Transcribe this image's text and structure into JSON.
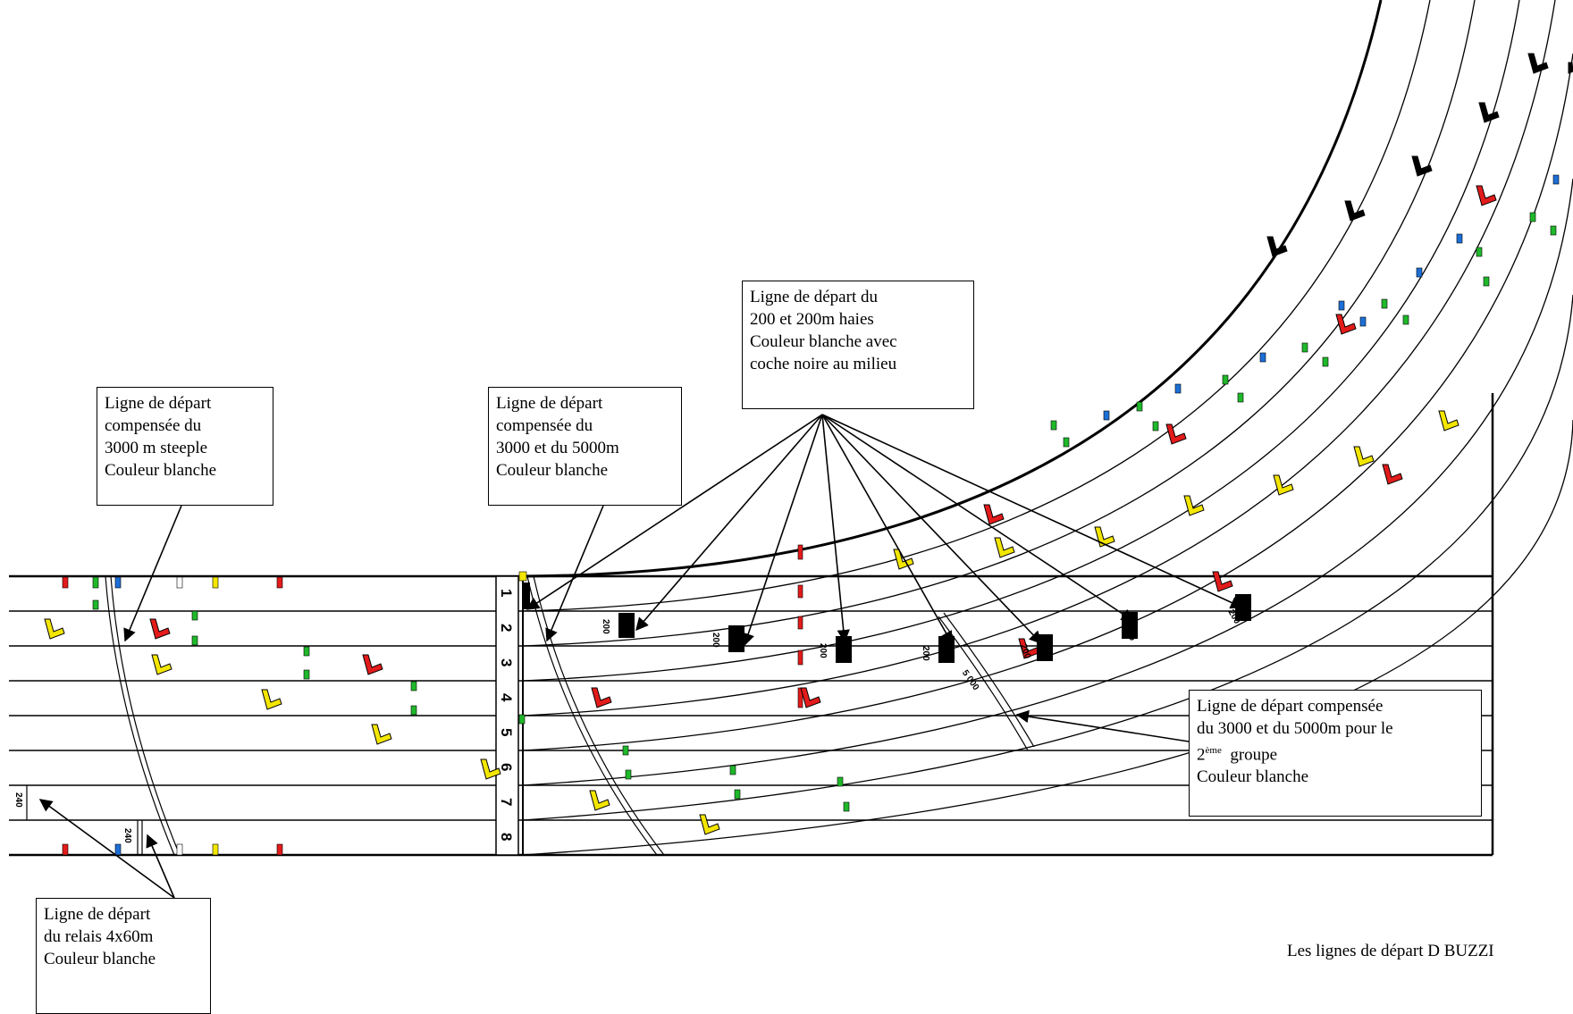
{
  "lanes": [
    "1",
    "2",
    "3",
    "4",
    "5",
    "6",
    "7",
    "8"
  ],
  "distance_marks": {
    "relay": "240",
    "two_hundred": "200",
    "five_thousand": "5 000"
  },
  "colors": {
    "red": "#e31b1b",
    "yellow": "#f3e600",
    "green": "#1fb82b",
    "blue": "#1c6fd6",
    "black": "#000000",
    "white": "#ffffff"
  },
  "callouts": {
    "steeple": {
      "line1": "Ligne de départ",
      "line2": "compensée du",
      "line3": "3000 m steeple",
      "line4": "Couleur blanche"
    },
    "long_distance": {
      "line1": "Ligne de départ",
      "line2": "compensée du",
      "line3": "3000 et du 5000m",
      "line4": "Couleur blanche"
    },
    "two_hundred": {
      "line1": "Ligne de départ du",
      "line2": "200 et 200m  haies",
      "line3": "Couleur blanche avec",
      "line4": "coche noire au milieu"
    },
    "second_group": {
      "line1": "Ligne de départ compensée",
      "line2": "du 3000 et du 5000m pour le",
      "line3_main": "2",
      "line3_sup": "ème",
      "line3_rest": "  groupe",
      "line4": "Couleur blanche"
    },
    "relay": {
      "line1": "Ligne de départ",
      "line2": "du relais 4x60m",
      "line3": "Couleur blanche"
    }
  },
  "footer": "Les lignes de départ D BUZZI"
}
